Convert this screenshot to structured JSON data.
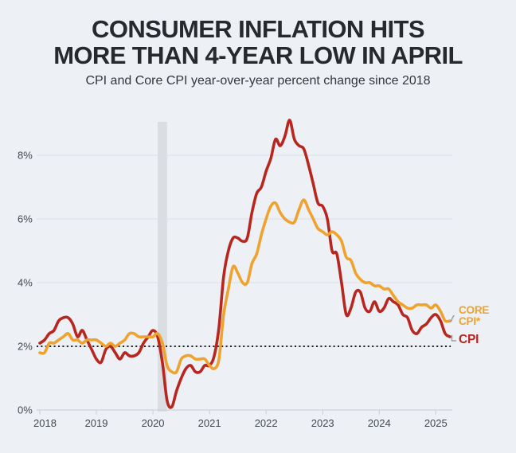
{
  "header": {
    "title_line1": "CONSUMER INFLATION HITS",
    "title_line2": "MORE THAN 4-YEAR LOW IN APRIL",
    "subtitle": "CPI and Core CPI year-over-year percent change since 2018"
  },
  "legend": {
    "core_line1": "CORE",
    "core_line2": "CPI*",
    "cpi": "CPI"
  },
  "colors": {
    "background": "#edf1f5",
    "title_text": "#26292e",
    "axis_text": "#43484f",
    "gridline": "#dae0e6",
    "axis_line": "#c6ccd4",
    "recession_band": "#dadde1",
    "dotted_reference": "#1f1f1f",
    "cpi_line": "#b7271f",
    "core_cpi_line": "#efa22e",
    "connector": "#979ca3"
  },
  "chart_data": {
    "type": "line",
    "title": "CONSUMER INFLATION HITS MORE THAN 4-YEAR LOW IN APRIL",
    "subtitle": "CPI and Core CPI year-over-year percent change since 2018",
    "x_unit": "month",
    "x_start": "2018-01",
    "x_end": "2025-04",
    "x_tick_labels": [
      "2018",
      "2019",
      "2020",
      "2021",
      "2022",
      "2023",
      "2024",
      "2025"
    ],
    "y_ticks": [
      0,
      2,
      4,
      6,
      8
    ],
    "y_tick_suffix": "%",
    "ylim": [
      0,
      9.6
    ],
    "grid": "horizontal",
    "legend_position": "right-of-line-ends",
    "reference_line": {
      "value": 2,
      "style": "dotted",
      "color": "#1f1f1f"
    },
    "shaded_band": {
      "from": "2020-02",
      "to": "2020-04",
      "meaning": "2020 recession"
    },
    "series": [
      {
        "name": "CPI",
        "color": "#b7271f",
        "values": [
          2.1,
          2.2,
          2.4,
          2.5,
          2.8,
          2.9,
          2.9,
          2.7,
          2.3,
          2.5,
          2.2,
          1.9,
          1.6,
          1.5,
          1.9,
          2.0,
          1.8,
          1.6,
          1.8,
          1.7,
          1.7,
          1.8,
          2.1,
          2.3,
          2.5,
          2.3,
          1.5,
          0.3,
          0.1,
          0.6,
          1.0,
          1.3,
          1.4,
          1.2,
          1.2,
          1.4,
          1.4,
          1.7,
          2.6,
          4.2,
          5.0,
          5.4,
          5.4,
          5.3,
          5.4,
          6.2,
          6.8,
          7.0,
          7.5,
          7.9,
          8.5,
          8.3,
          8.6,
          9.1,
          8.5,
          8.3,
          8.2,
          7.7,
          7.1,
          6.5,
          6.4,
          6.0,
          5.0,
          4.9,
          4.0,
          3.0,
          3.2,
          3.7,
          3.7,
          3.2,
          3.1,
          3.4,
          3.1,
          3.2,
          3.5,
          3.4,
          3.3,
          3.0,
          2.9,
          2.5,
          2.4,
          2.6,
          2.7,
          2.9,
          3.0,
          2.8,
          2.4,
          2.3
        ]
      },
      {
        "name": "CORE CPI*",
        "color": "#efa22e",
        "values": [
          1.8,
          1.8,
          2.1,
          2.1,
          2.2,
          2.3,
          2.4,
          2.2,
          2.2,
          2.1,
          2.2,
          2.2,
          2.2,
          2.1,
          2.0,
          2.1,
          2.0,
          2.1,
          2.2,
          2.4,
          2.4,
          2.3,
          2.3,
          2.3,
          2.3,
          2.4,
          2.1,
          1.4,
          1.2,
          1.2,
          1.6,
          1.7,
          1.7,
          1.6,
          1.6,
          1.6,
          1.4,
          1.3,
          1.6,
          3.0,
          3.8,
          4.5,
          4.3,
          4.0,
          4.0,
          4.6,
          4.9,
          5.5,
          6.0,
          6.4,
          6.5,
          6.2,
          6.0,
          5.9,
          5.9,
          6.3,
          6.6,
          6.3,
          6.0,
          5.7,
          5.6,
          5.5,
          5.6,
          5.5,
          5.3,
          4.8,
          4.7,
          4.3,
          4.1,
          4.0,
          4.0,
          3.9,
          3.9,
          3.8,
          3.8,
          3.6,
          3.4,
          3.3,
          3.2,
          3.2,
          3.3,
          3.3,
          3.3,
          3.2,
          3.3,
          3.1,
          2.8,
          2.8
        ]
      }
    ]
  }
}
